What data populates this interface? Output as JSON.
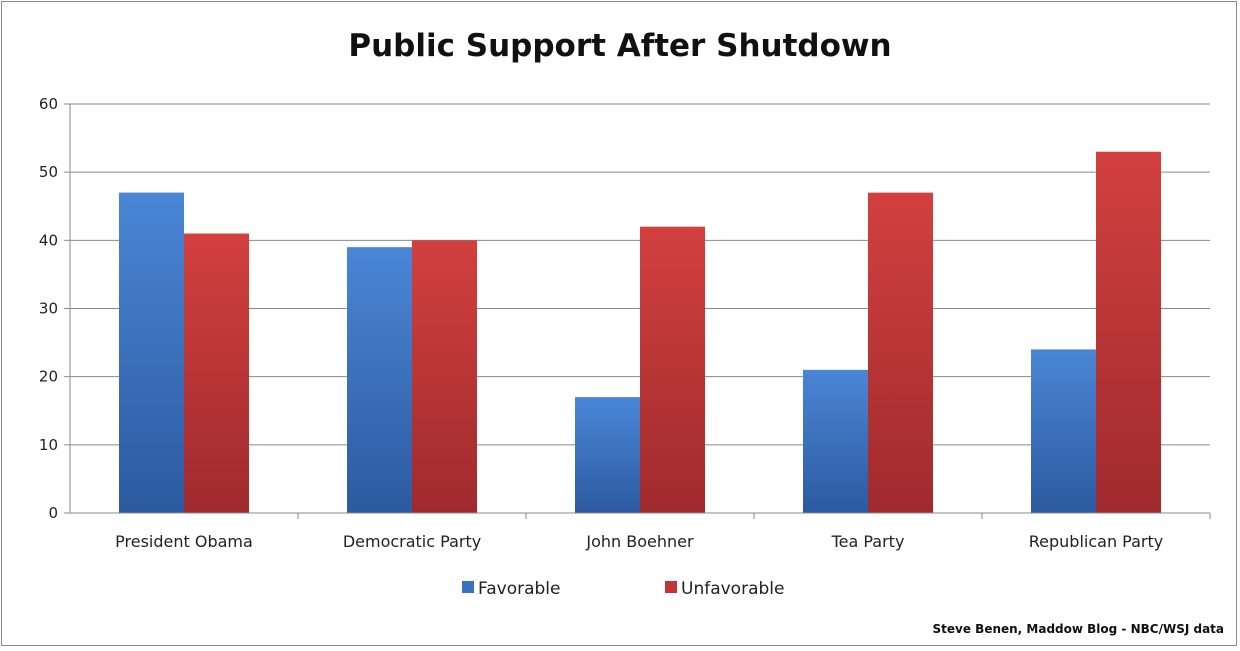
{
  "chart_data": {
    "type": "bar",
    "title": "Public Support After Shutdown",
    "credit": "Steve Benen, Maddow Blog - NBC/WSJ data",
    "xlabel": "",
    "ylabel": "",
    "categories": [
      "President Obama",
      "Democratic Party",
      "John Boehner",
      "Tea Party",
      "Republican Party"
    ],
    "series": [
      {
        "name": "Favorable",
        "color": "#3b6fc0",
        "values": [
          47,
          39,
          17,
          21,
          24
        ]
      },
      {
        "name": "Unfavorable",
        "color": "#c0343a",
        "values": [
          41,
          40,
          42,
          47,
          53
        ]
      }
    ],
    "ylim": [
      0,
      60
    ],
    "yticks": [
      0,
      10,
      20,
      30,
      40,
      50,
      60
    ],
    "grid": true,
    "legend": "bottom"
  }
}
